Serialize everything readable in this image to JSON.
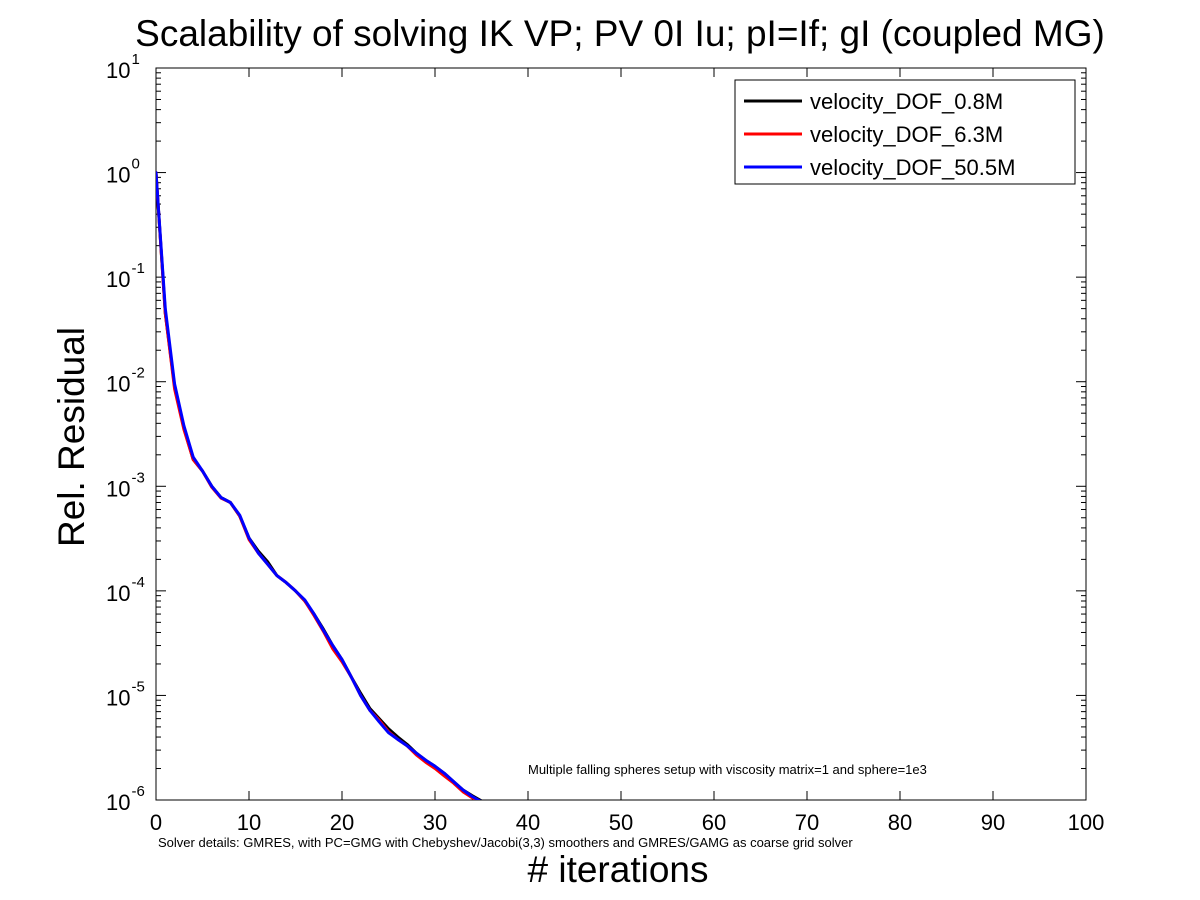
{
  "colors": {
    "background": "#ffffff",
    "axes": "#000000"
  },
  "chart_data": {
    "type": "line",
    "title": "Scalability of solving IK VP; PV 0I Iu; pI=If; gI (coupled MG)",
    "xlabel": "# iterations",
    "ylabel": "Rel. Residual",
    "xlim": [
      0,
      100
    ],
    "ylim": [
      1e-06,
      10
    ],
    "yscale": "log",
    "x_ticks": [
      0,
      10,
      20,
      30,
      40,
      50,
      60,
      70,
      80,
      90,
      100
    ],
    "x_tick_labels": [
      "0",
      "10",
      "20",
      "30",
      "40",
      "50",
      "60",
      "70",
      "80",
      "90",
      "100"
    ],
    "y_ticks": [
      {
        "value": 1e-06,
        "base": "10",
        "exp": "-6"
      },
      {
        "value": 1e-05,
        "base": "10",
        "exp": "-5"
      },
      {
        "value": 0.0001,
        "base": "10",
        "exp": "-4"
      },
      {
        "value": 0.001,
        "base": "10",
        "exp": "-3"
      },
      {
        "value": 0.01,
        "base": "10",
        "exp": "-2"
      },
      {
        "value": 0.1,
        "base": "10",
        "exp": "-1"
      },
      {
        "value": 1,
        "base": "10",
        "exp": "0"
      },
      {
        "value": 10,
        "base": "10",
        "exp": "1"
      }
    ],
    "grid": false,
    "legend_position": "top-right",
    "annotation": "Multiple falling spheres setup with viscosity matrix=1 and sphere=1e3",
    "footnote": "Solver details: GMRES, with PC=GMG with Chebyshev/Jacobi(3,3) smoothers and GMRES/GAMG as coarse grid solver",
    "series": [
      {
        "name": "velocity_DOF_0.8M",
        "color": "#000000",
        "x": [
          0,
          1,
          2,
          3,
          4,
          5,
          6,
          7,
          8,
          9,
          10,
          11,
          12,
          13,
          14,
          15,
          16,
          17,
          18,
          19,
          20,
          21,
          22,
          23,
          24,
          25,
          26,
          27,
          28,
          29,
          30,
          31,
          32,
          33,
          34,
          35
        ],
        "y": [
          1.0,
          0.045,
          0.009,
          0.0036,
          0.0018,
          0.0014,
          0.001,
          0.00078,
          0.0007,
          0.00052,
          0.00032,
          0.00024,
          0.00019,
          0.00014,
          0.00012,
          0.0001,
          8e-05,
          6e-05,
          4.3e-05,
          3e-05,
          2.2e-05,
          1.5e-05,
          1.05e-05,
          7.5e-06,
          6e-06,
          4.8e-06,
          4e-06,
          3.4e-06,
          2.8e-06,
          2.4e-06,
          2.1e-06,
          1.8e-06,
          1.5e-06,
          1.25e-06,
          1.1e-06,
          9.8e-07
        ]
      },
      {
        "name": "velocity_DOF_6.3M",
        "color": "#ff0000",
        "x": [
          0,
          1,
          2,
          3,
          4,
          5,
          6,
          7,
          8,
          9,
          10,
          11,
          12,
          13,
          14,
          15,
          16,
          17,
          18,
          19,
          20,
          21,
          22,
          23,
          24,
          25,
          26,
          27,
          28,
          29,
          30,
          31,
          32,
          33,
          34,
          35
        ],
        "y": [
          1.0,
          0.045,
          0.0085,
          0.0035,
          0.0018,
          0.0014,
          0.00098,
          0.00077,
          0.0007,
          0.00052,
          0.00031,
          0.00023,
          0.00018,
          0.00014,
          0.00012,
          0.0001,
          8e-05,
          5.8e-05,
          4.1e-05,
          2.8e-05,
          2.1e-05,
          1.5e-05,
          1e-05,
          7.2e-06,
          5.8e-06,
          4.5e-06,
          3.8e-06,
          3.3e-06,
          2.7e-06,
          2.3e-06,
          2e-06,
          1.7e-06,
          1.45e-06,
          1.2e-06,
          1.05e-06,
          9.5e-07
        ]
      },
      {
        "name": "velocity_DOF_50.5M",
        "color": "#0000ff",
        "x": [
          0,
          1,
          2,
          3,
          4,
          5,
          6,
          7,
          8,
          9,
          10,
          11,
          12,
          13,
          14,
          15,
          16,
          17,
          18,
          19,
          20,
          21,
          22,
          23,
          24,
          25,
          26,
          27,
          28,
          29,
          30,
          31,
          32,
          33,
          34,
          35
        ],
        "y": [
          1.0,
          0.05,
          0.0095,
          0.0038,
          0.0019,
          0.0014,
          0.001,
          0.00078,
          0.0007,
          0.00053,
          0.00032,
          0.00023,
          0.00018,
          0.00014,
          0.00012,
          0.0001,
          8.2e-05,
          6e-05,
          4.2e-05,
          3e-05,
          2.2e-05,
          1.5e-05,
          1e-05,
          7.2e-06,
          5.6e-06,
          4.4e-06,
          3.8e-06,
          3.3e-06,
          2.8e-06,
          2.4e-06,
          2.1e-06,
          1.8e-06,
          1.5e-06,
          1.25e-06,
          1.08e-06,
          9.6e-07
        ]
      }
    ]
  }
}
